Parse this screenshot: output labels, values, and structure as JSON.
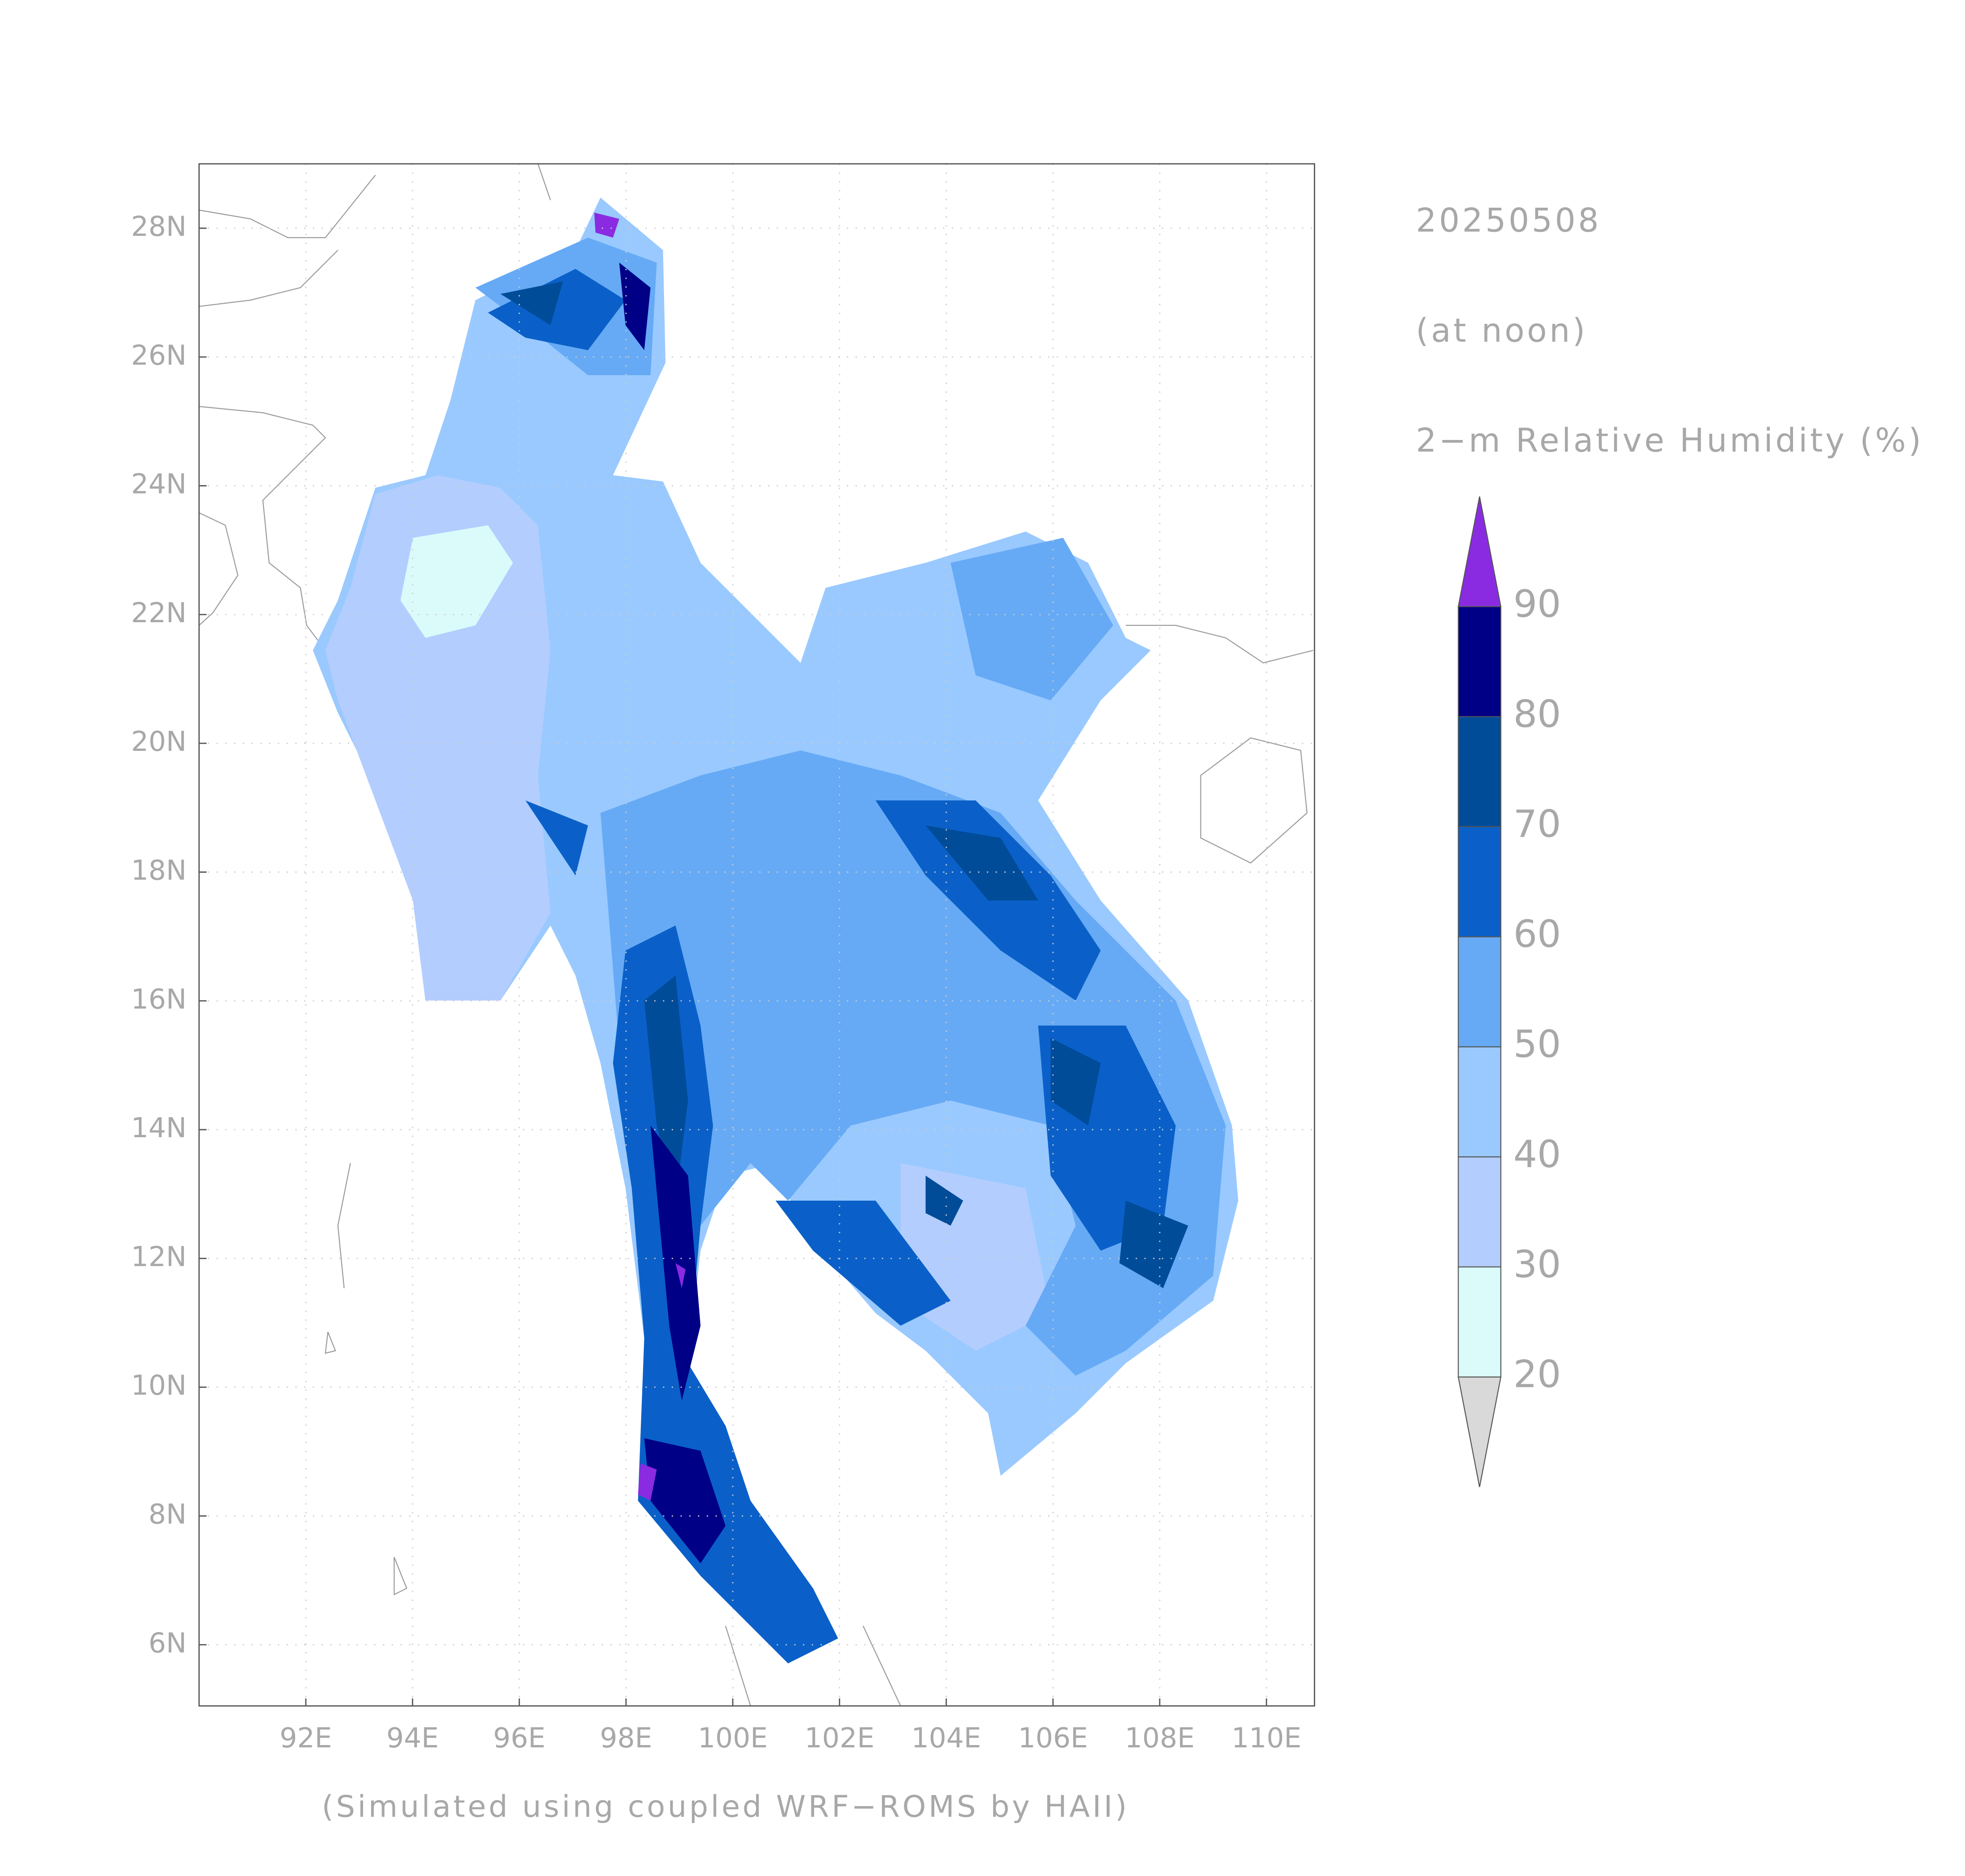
{
  "map": {
    "date": "20250508",
    "time": "(at noon)",
    "variable": "2−m Relative Humidity (%)",
    "footer": "(Simulated using coupled WRF−ROMS by HAII)",
    "lon_range": [
      90,
      110.9
    ],
    "lat_range": [
      5.05,
      29
    ],
    "lon_ticks": [
      {
        "value": 92,
        "label": "92E"
      },
      {
        "value": 94,
        "label": "94E"
      },
      {
        "value": 96,
        "label": "96E"
      },
      {
        "value": 98,
        "label": "98E"
      },
      {
        "value": 100,
        "label": "100E"
      },
      {
        "value": 102,
        "label": "102E"
      },
      {
        "value": 104,
        "label": "104E"
      },
      {
        "value": 106,
        "label": "106E"
      },
      {
        "value": 108,
        "label": "108E"
      },
      {
        "value": 110,
        "label": "110E"
      }
    ],
    "lat_ticks": [
      {
        "value": 6,
        "label": "6N"
      },
      {
        "value": 8,
        "label": "8N"
      },
      {
        "value": 10,
        "label": "10N"
      },
      {
        "value": 12,
        "label": "12N"
      },
      {
        "value": 14,
        "label": "14N"
      },
      {
        "value": 16,
        "label": "16N"
      },
      {
        "value": 18,
        "label": "18N"
      },
      {
        "value": 20,
        "label": "20N"
      },
      {
        "value": 22,
        "label": "22N"
      },
      {
        "value": 24,
        "label": "24N"
      },
      {
        "value": 26,
        "label": "26N"
      },
      {
        "value": 28,
        "label": "28N"
      }
    ],
    "colorbar": {
      "levels": [
        20,
        30,
        40,
        50,
        60,
        70,
        80,
        90
      ],
      "colors": [
        "#d9d9d9",
        "#dbfbfb",
        "#b3cdff",
        "#99c9ff",
        "#66aaf5",
        "#0a60c8",
        "#004c99",
        "#000087",
        "#8a2be2"
      ]
    }
  }
}
